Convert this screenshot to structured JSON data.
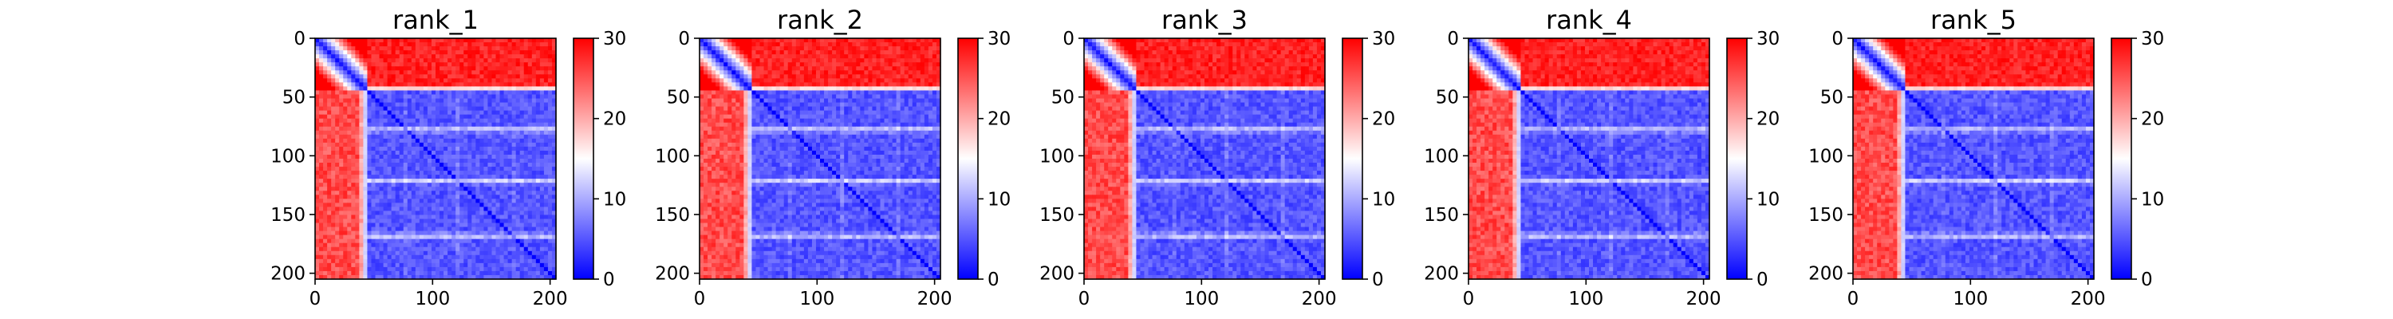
{
  "chart_data": [
    {
      "type": "heatmap",
      "title": "rank_1",
      "x_ticks": [
        0,
        100,
        200
      ],
      "y_ticks": [
        0,
        50,
        100,
        150,
        200
      ],
      "xlim": [
        0,
        205
      ],
      "ylim": [
        205,
        0
      ],
      "colorbar": {
        "ticks": [
          0,
          10,
          20,
          30
        ],
        "range": [
          0,
          30
        ],
        "colors": [
          "#0000ff",
          "#ffffff",
          "#ff0000"
        ]
      },
      "structure": {
        "n": 205,
        "domain_boundary": 45,
        "top_right_block_value": 30,
        "bottom_left_block_value": 28,
        "diagonal_value": 0,
        "inner_block_value": 3,
        "bright_rows": [
          78,
          122,
          168
        ]
      }
    },
    {
      "type": "heatmap",
      "title": "rank_2",
      "x_ticks": [
        0,
        100,
        200
      ],
      "y_ticks": [
        0,
        50,
        100,
        150,
        200
      ],
      "xlim": [
        0,
        205
      ],
      "ylim": [
        205,
        0
      ],
      "colorbar": {
        "ticks": [
          0,
          10,
          20,
          30
        ],
        "range": [
          0,
          30
        ],
        "colors": [
          "#0000ff",
          "#ffffff",
          "#ff0000"
        ]
      },
      "structure": {
        "n": 205,
        "domain_boundary": 45,
        "top_right_block_value": 30,
        "bottom_left_block_value": 28,
        "diagonal_value": 0,
        "inner_block_value": 3,
        "bright_rows": [
          78,
          122,
          168
        ]
      }
    },
    {
      "type": "heatmap",
      "title": "rank_3",
      "x_ticks": [
        0,
        100,
        200
      ],
      "y_ticks": [
        0,
        50,
        100,
        150,
        200
      ],
      "xlim": [
        0,
        205
      ],
      "ylim": [
        205,
        0
      ],
      "colorbar": {
        "ticks": [
          0,
          10,
          20,
          30
        ],
        "range": [
          0,
          30
        ],
        "colors": [
          "#0000ff",
          "#ffffff",
          "#ff0000"
        ]
      },
      "structure": {
        "n": 205,
        "domain_boundary": 45,
        "top_right_block_value": 30,
        "bottom_left_block_value": 28,
        "diagonal_value": 0,
        "inner_block_value": 3,
        "bright_rows": [
          78,
          122,
          168
        ]
      }
    },
    {
      "type": "heatmap",
      "title": "rank_4",
      "x_ticks": [
        0,
        100,
        200
      ],
      "y_ticks": [
        0,
        50,
        100,
        150,
        200
      ],
      "xlim": [
        0,
        205
      ],
      "ylim": [
        205,
        0
      ],
      "colorbar": {
        "ticks": [
          0,
          10,
          20,
          30
        ],
        "range": [
          0,
          30
        ],
        "colors": [
          "#0000ff",
          "#ffffff",
          "#ff0000"
        ]
      },
      "structure": {
        "n": 205,
        "domain_boundary": 45,
        "top_right_block_value": 30,
        "bottom_left_block_value": 28,
        "diagonal_value": 0,
        "inner_block_value": 3,
        "bright_rows": [
          78,
          122,
          168
        ]
      }
    },
    {
      "type": "heatmap",
      "title": "rank_5",
      "x_ticks": [
        0,
        100,
        200
      ],
      "y_ticks": [
        0,
        50,
        100,
        150,
        200
      ],
      "xlim": [
        0,
        205
      ],
      "ylim": [
        205,
        0
      ],
      "colorbar": {
        "ticks": [
          0,
          10,
          20,
          30
        ],
        "range": [
          0,
          30
        ],
        "colors": [
          "#0000ff",
          "#ffffff",
          "#ff0000"
        ]
      },
      "structure": {
        "n": 205,
        "domain_boundary": 45,
        "top_right_block_value": 30,
        "bottom_left_block_value": 28,
        "diagonal_value": 0,
        "inner_block_value": 3,
        "bright_rows": [
          78,
          122,
          168
        ]
      }
    }
  ]
}
